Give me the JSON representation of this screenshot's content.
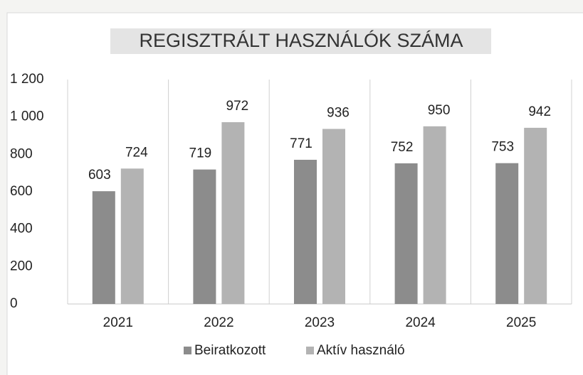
{
  "chart_data": {
    "type": "bar",
    "title": "REGISZTRÁLT HASZNÁLÓK SZÁMA",
    "categories": [
      "2021",
      "2022",
      "2023",
      "2024",
      "2025"
    ],
    "series": [
      {
        "name": "Beiratkozott",
        "color": "#8c8c8c",
        "values": [
          603,
          719,
          771,
          752,
          753
        ]
      },
      {
        "name": "Aktív használó",
        "color": "#b3b3b3",
        "values": [
          724,
          972,
          936,
          950,
          942
        ]
      }
    ],
    "ylim": [
      0,
      1200
    ],
    "yticks": [
      0,
      200,
      400,
      600,
      800,
      {
        "value": 1000,
        "label": "1 000"
      },
      {
        "value": 1200,
        "label": "1 200"
      }
    ],
    "grid": false,
    "legend": "bottom"
  }
}
